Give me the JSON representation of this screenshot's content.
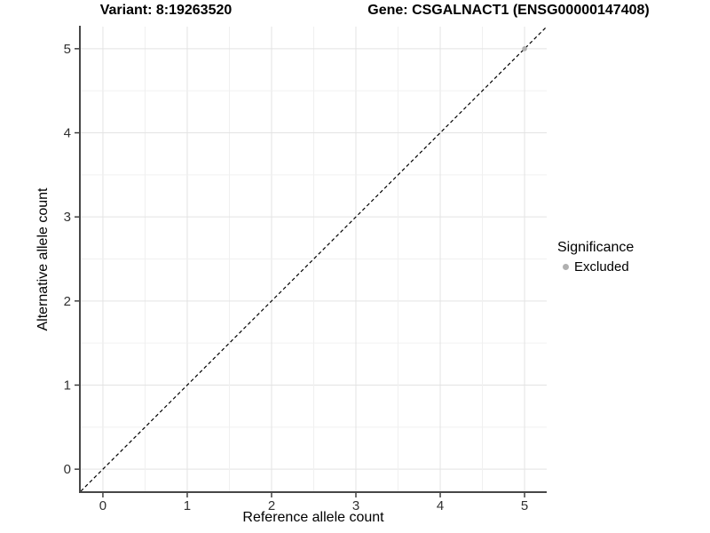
{
  "figure": {
    "title_left": "Variant: 8:19263520",
    "title_right": "Gene: CSGALNACT1 (ENSG00000147408)"
  },
  "axes": {
    "x_label": "Reference allele count",
    "y_label": "Alternative allele count"
  },
  "legend": {
    "title": "Significance",
    "items": [
      {
        "label": "Excluded",
        "color": "#b0b0b0"
      }
    ]
  },
  "chart_data": {
    "type": "scatter",
    "title": "Variant: 8:19263520 — Gene: CSGALNACT1 (ENSG00000147408)",
    "xlabel": "Reference allele count",
    "ylabel": "Alternative allele count",
    "xlim": [
      -0.2625,
      5.2625
    ],
    "ylim": [
      -0.2625,
      5.2625
    ],
    "x_ticks": [
      0,
      1,
      2,
      3,
      4,
      5
    ],
    "y_ticks": [
      0,
      1,
      2,
      3,
      4,
      5
    ],
    "minor_grid_step": 0.5,
    "grid": true,
    "legend_position": "right",
    "series": [
      {
        "name": "Excluded",
        "color": "#b0b0b0",
        "points": [
          {
            "x": 5,
            "y": 5
          }
        ]
      }
    ],
    "reference_line": {
      "style": "dashed",
      "slope": 1,
      "intercept": 0,
      "color": "#000000"
    }
  },
  "colors": {
    "background": "#ffffff",
    "grid_major": "#e3e3e3",
    "grid_minor": "#f0f0f0",
    "axis_line": "#474747",
    "tick": "#333333",
    "tick_label": "#303030",
    "point": "#b0b0b0"
  }
}
